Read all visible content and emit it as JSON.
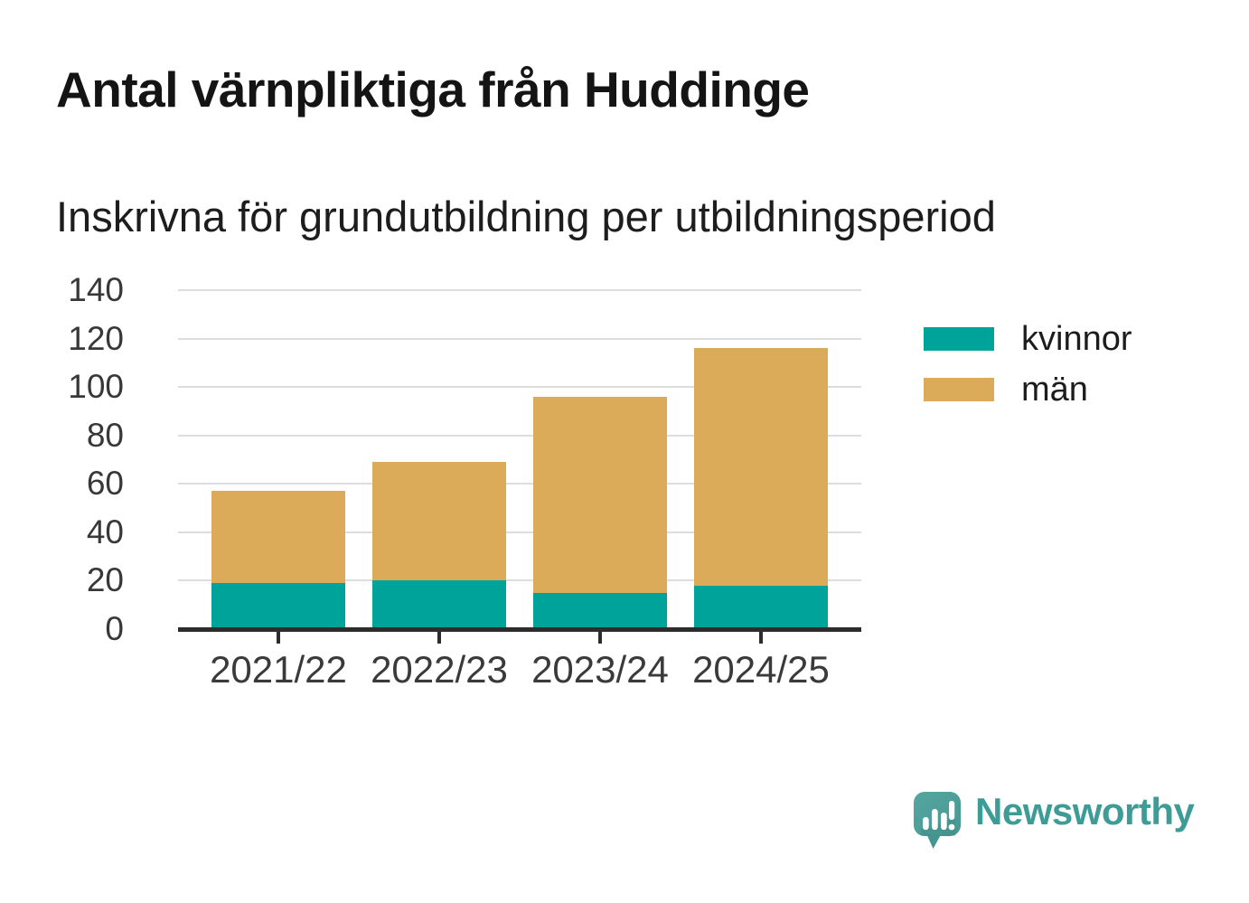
{
  "header": {
    "title": "Antal värnpliktiga från Huddinge",
    "subtitle": "Inskrivna för grundutbildning per utbildningsperiod"
  },
  "chart_data": {
    "type": "bar",
    "stacked": true,
    "title": "Antal värnpliktiga från Huddinge",
    "subtitle": "Inskrivna för grundutbildning per utbildningsperiod",
    "categories": [
      "2021/22",
      "2022/23",
      "2023/24",
      "2024/25"
    ],
    "series": [
      {
        "name": "kvinnor",
        "color": "#00a39a",
        "values": [
          19,
          20,
          15,
          18
        ]
      },
      {
        "name": "män",
        "color": "#dcab5a",
        "values": [
          38,
          49,
          81,
          98
        ]
      }
    ],
    "stack_totals": [
      57,
      69,
      96,
      116
    ],
    "ylim": [
      0,
      140
    ],
    "yticks": [
      0,
      20,
      40,
      60,
      80,
      100,
      120,
      140
    ],
    "grid": true,
    "legend_position": "right",
    "colors": {
      "grid": "#dddddd",
      "axis": "#2d2d2d",
      "tick_labels": "#3a3a3a"
    }
  },
  "branding": {
    "logo_text": "Newsworthy",
    "logo_color": "#3d9c96",
    "logo_icon": "speech-bubble-bar-chart",
    "icon_color": "#4c9d98"
  }
}
